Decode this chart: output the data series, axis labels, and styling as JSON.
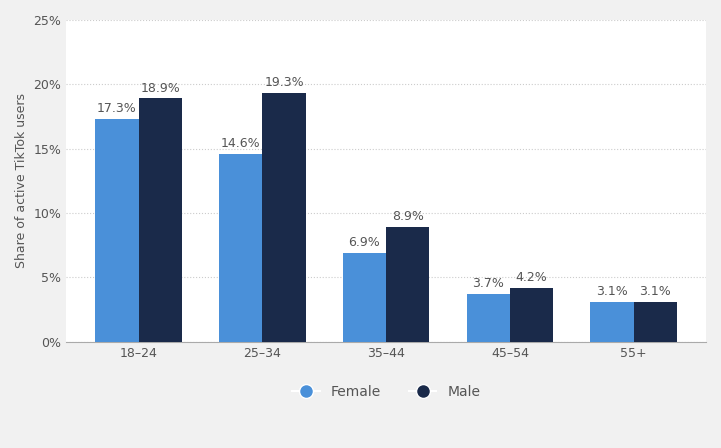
{
  "categories": [
    "18–24",
    "25–34",
    "35–44",
    "45–54",
    "55+"
  ],
  "female_values": [
    17.3,
    14.6,
    6.9,
    3.7,
    3.1
  ],
  "male_values": [
    18.9,
    19.3,
    8.9,
    4.2,
    3.1
  ],
  "female_color": "#4a90d9",
  "male_color": "#1a2a4a",
  "ylabel": "Share of active TikTok users",
  "yticks": [
    0,
    5,
    10,
    15,
    20,
    25
  ],
  "ytick_labels": [
    "0%",
    "5%",
    "10%",
    "15%",
    "20%",
    "25%"
  ],
  "ylim": [
    0,
    25
  ],
  "bar_width": 0.35,
  "background_color": "#f1f1f1",
  "plot_background_color": "#ffffff",
  "grid_color": "#cccccc",
  "label_fontsize": 9,
  "axis_fontsize": 9,
  "legend_fontsize": 10
}
